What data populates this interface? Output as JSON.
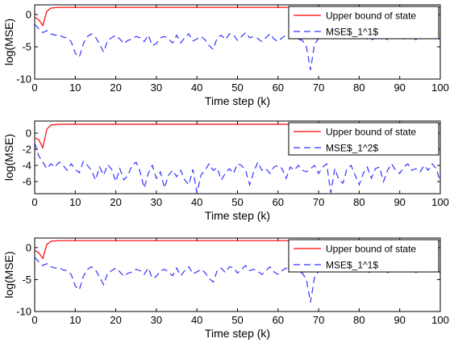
{
  "chart_data": [
    {
      "type": "line",
      "xlabel": "Time step (k)",
      "ylabel": "log(MSE)",
      "xlim": [
        0,
        100
      ],
      "ylim": [
        -10,
        1.5
      ],
      "xticks": [
        0,
        10,
        20,
        30,
        40,
        50,
        60,
        70,
        80,
        90,
        100
      ],
      "xtick_labels": [
        "0",
        "10",
        "20",
        "30",
        "40",
        "50",
        "60",
        "70",
        "80",
        "90",
        "100"
      ],
      "yticks": [
        -10,
        -5,
        0
      ],
      "ytick_labels": [
        "-10",
        "-5",
        "0"
      ],
      "legend_position": "top-right",
      "series": [
        {
          "name": "Upper bound of state",
          "color": "#ff0000",
          "style": "solid",
          "x": [
            0,
            1,
            2,
            3,
            4,
            6,
            100
          ],
          "y": [
            -0.4,
            -0.8,
            -1.7,
            0.5,
            1.0,
            1.1,
            1.1
          ]
        },
        {
          "name": "MSE$_1^1$",
          "color": "#3333ff",
          "style": "dashed",
          "x": [
            0,
            1,
            2,
            3,
            4,
            5,
            6,
            7,
            8,
            9,
            10,
            11,
            12,
            13,
            14,
            15,
            16,
            17,
            18,
            19,
            20,
            21,
            22,
            23,
            24,
            25,
            26,
            27,
            28,
            29,
            30,
            31,
            32,
            33,
            34,
            35,
            36,
            37,
            38,
            39,
            40,
            41,
            42,
            43,
            44,
            45,
            46,
            47,
            48,
            49,
            50,
            51,
            52,
            53,
            54,
            55,
            56,
            57,
            58,
            59,
            60,
            61,
            62,
            63,
            64,
            65,
            66,
            67,
            68,
            69,
            70,
            71,
            72,
            73,
            74,
            75,
            76,
            77,
            78,
            79,
            80,
            81,
            82,
            83,
            84,
            85,
            86,
            87,
            88,
            89,
            90,
            91,
            92,
            93,
            94,
            95,
            96,
            97,
            98,
            99,
            100
          ],
          "y": [
            -1.5,
            -2.2,
            -2.8,
            -2.5,
            -3.0,
            -3.2,
            -3.1,
            -3.5,
            -3.6,
            -4.2,
            -6.0,
            -6.6,
            -4.5,
            -3.4,
            -3.0,
            -3.5,
            -4.6,
            -5.8,
            -4.0,
            -3.6,
            -3.2,
            -3.8,
            -4.5,
            -4.0,
            -3.8,
            -3.4,
            -3.6,
            -4.2,
            -3.2,
            -4.8,
            -4.5,
            -3.6,
            -3.4,
            -3.8,
            -4.4,
            -3.2,
            -4.4,
            -3.6,
            -3.0,
            -4.1,
            -3.8,
            -3.4,
            -3.9,
            -4.8,
            -5.4,
            -3.6,
            -3.2,
            -3.9,
            -3.0,
            -3.1,
            -4.0,
            -3.4,
            -2.8,
            -3.6,
            -3.4,
            -3.7,
            -4.2,
            -3.6,
            -3.0,
            -3.8,
            -4.2,
            -3.6,
            -3.2,
            -3.5,
            -3.6,
            -3.8,
            -4.0,
            -5.0,
            -8.6,
            -4.6,
            -3.7,
            -3.3,
            -3.4,
            -3.8,
            -3.6,
            -3.5,
            -3.7,
            -3.4,
            -3.8,
            -3.5,
            -3.3,
            -3.6,
            -3.8,
            -3.9,
            -3.7,
            -3.5,
            -3.6,
            -3.9,
            -3.7,
            -3.5,
            -3.4,
            -3.8,
            -3.6,
            -3.5,
            -3.9,
            -3.3,
            -3.6,
            -3.4,
            -2.8,
            -3.2,
            -4.0
          ]
        }
      ]
    },
    {
      "type": "line",
      "xlabel": "Time step (k)",
      "ylabel": "log(MSE)",
      "xlim": [
        0,
        100
      ],
      "ylim": [
        -7.5,
        1.5
      ],
      "xticks": [
        0,
        10,
        20,
        30,
        40,
        50,
        60,
        70,
        80,
        90,
        100
      ],
      "xtick_labels": [
        "0",
        "10",
        "20",
        "30",
        "40",
        "50",
        "60",
        "70",
        "80",
        "90",
        "100"
      ],
      "yticks": [
        -6,
        -4,
        -2,
        0
      ],
      "ytick_labels": [
        "-6",
        "-4",
        "-2",
        "0"
      ],
      "legend_position": "top-right",
      "series": [
        {
          "name": "Upper bound of state",
          "color": "#ff0000",
          "style": "solid",
          "x": [
            0,
            1,
            2,
            3,
            4,
            6,
            100
          ],
          "y": [
            -0.6,
            -0.8,
            -1.8,
            0.5,
            1.0,
            1.1,
            1.1
          ]
        },
        {
          "name": "MSE$_1^2$",
          "color": "#3333ff",
          "style": "dashed",
          "x": [
            0,
            1,
            2,
            3,
            4,
            5,
            6,
            7,
            8,
            9,
            10,
            11,
            12,
            13,
            14,
            15,
            16,
            17,
            18,
            19,
            20,
            21,
            22,
            23,
            24,
            25,
            26,
            27,
            28,
            29,
            30,
            31,
            32,
            33,
            34,
            35,
            36,
            37,
            38,
            39,
            40,
            41,
            42,
            43,
            44,
            45,
            46,
            47,
            48,
            49,
            50,
            51,
            52,
            53,
            54,
            55,
            56,
            57,
            58,
            59,
            60,
            61,
            62,
            63,
            64,
            65,
            66,
            67,
            68,
            69,
            70,
            71,
            72,
            73,
            74,
            75,
            76,
            77,
            78,
            79,
            80,
            81,
            82,
            83,
            84,
            85,
            86,
            87,
            88,
            89,
            90,
            91,
            92,
            93,
            94,
            95,
            96,
            97,
            98,
            99,
            100
          ],
          "y": [
            -1.2,
            -2.8,
            -3.6,
            -4.4,
            -3.8,
            -4.2,
            -3.6,
            -4.0,
            -4.6,
            -3.8,
            -4.5,
            -4.9,
            -3.5,
            -4.0,
            -4.6,
            -5.8,
            -4.2,
            -5.2,
            -3.9,
            -4.5,
            -6.0,
            -4.4,
            -5.8,
            -5.2,
            -4.0,
            -3.6,
            -4.8,
            -6.8,
            -5.0,
            -4.0,
            -5.6,
            -4.8,
            -6.8,
            -5.2,
            -4.6,
            -5.4,
            -4.6,
            -5.8,
            -6.4,
            -4.5,
            -7.4,
            -5.2,
            -4.6,
            -3.8,
            -4.6,
            -4.3,
            -5.8,
            -5.0,
            -4.4,
            -5.0,
            -3.8,
            -4.0,
            -4.6,
            -6.4,
            -4.8,
            -3.6,
            -4.6,
            -4.4,
            -5.0,
            -4.2,
            -4.0,
            -4.4,
            -5.6,
            -4.2,
            -4.6,
            -4.0,
            -4.6,
            -4.8,
            -4.4,
            -4.0,
            -5.0,
            -4.2,
            -3.8,
            -7.4,
            -4.4,
            -5.8,
            -6.2,
            -4.4,
            -4.0,
            -5.2,
            -6.4,
            -5.0,
            -4.2,
            -5.6,
            -4.4,
            -4.2,
            -6.0,
            -4.6,
            -3.8,
            -4.6,
            -5.0,
            -4.2,
            -3.8,
            -4.6,
            -4.4,
            -4.8,
            -4.0,
            -4.6,
            -3.8,
            -4.4,
            -6.0
          ]
        }
      ]
    },
    {
      "type": "line",
      "xlabel": "Time step (k)",
      "ylabel": "log(MSE)",
      "xlim": [
        0,
        100
      ],
      "ylim": [
        -10,
        1.5
      ],
      "xticks": [
        0,
        10,
        20,
        30,
        40,
        50,
        60,
        70,
        80,
        90,
        100
      ],
      "xtick_labels": [
        "0",
        "10",
        "20",
        "30",
        "40",
        "50",
        "60",
        "70",
        "80",
        "90",
        "100"
      ],
      "yticks": [
        -10,
        -5,
        0
      ],
      "ytick_labels": [
        "-10",
        "-5",
        "0"
      ],
      "legend_position": "top-right",
      "series": [
        {
          "name": "Upper bound of state",
          "color": "#ff0000",
          "style": "solid",
          "x": [
            0,
            1,
            2,
            3,
            4,
            6,
            100
          ],
          "y": [
            -0.4,
            -0.8,
            -1.7,
            0.5,
            1.0,
            1.1,
            1.1
          ]
        },
        {
          "name": "MSE$_1^1$",
          "color": "#3333ff",
          "style": "dashed",
          "x": [
            0,
            1,
            2,
            3,
            4,
            5,
            6,
            7,
            8,
            9,
            10,
            11,
            12,
            13,
            14,
            15,
            16,
            17,
            18,
            19,
            20,
            21,
            22,
            23,
            24,
            25,
            26,
            27,
            28,
            29,
            30,
            31,
            32,
            33,
            34,
            35,
            36,
            37,
            38,
            39,
            40,
            41,
            42,
            43,
            44,
            45,
            46,
            47,
            48,
            49,
            50,
            51,
            52,
            53,
            54,
            55,
            56,
            57,
            58,
            59,
            60,
            61,
            62,
            63,
            64,
            65,
            66,
            67,
            68,
            69,
            70,
            71,
            72,
            73,
            74,
            75,
            76,
            77,
            78,
            79,
            80,
            81,
            82,
            83,
            84,
            85,
            86,
            87,
            88,
            89,
            90,
            91,
            92,
            93,
            94,
            95,
            96,
            97,
            98,
            99,
            100
          ],
          "y": [
            -1.5,
            -2.2,
            -2.8,
            -2.5,
            -3.0,
            -3.2,
            -3.1,
            -3.5,
            -3.6,
            -4.2,
            -6.0,
            -6.6,
            -4.5,
            -3.4,
            -3.0,
            -3.5,
            -4.6,
            -5.8,
            -4.0,
            -3.6,
            -3.2,
            -3.8,
            -4.5,
            -4.0,
            -3.8,
            -3.4,
            -3.6,
            -4.2,
            -3.2,
            -4.8,
            -4.5,
            -3.6,
            -3.4,
            -3.8,
            -4.4,
            -3.2,
            -4.4,
            -3.6,
            -3.0,
            -4.1,
            -3.8,
            -3.4,
            -3.9,
            -4.8,
            -5.4,
            -3.6,
            -3.2,
            -3.9,
            -3.0,
            -3.1,
            -4.0,
            -3.4,
            -2.8,
            -3.6,
            -3.4,
            -3.7,
            -4.2,
            -3.6,
            -3.0,
            -3.8,
            -4.2,
            -3.6,
            -3.2,
            -3.5,
            -3.6,
            -3.8,
            -4.0,
            -5.0,
            -8.6,
            -4.6,
            -3.7,
            -3.3,
            -3.4,
            -3.8,
            -3.6,
            -3.5,
            -3.7,
            -3.4,
            -3.8,
            -3.5,
            -3.3,
            -3.6,
            -3.8,
            -3.9,
            -3.7,
            -3.5,
            -3.6,
            -3.9,
            -3.7,
            -3.5,
            -3.4,
            -3.8,
            -3.6,
            -3.5,
            -3.9,
            -3.3,
            -3.6,
            -3.4,
            -2.8,
            -3.2,
            -4.0
          ]
        }
      ]
    }
  ]
}
